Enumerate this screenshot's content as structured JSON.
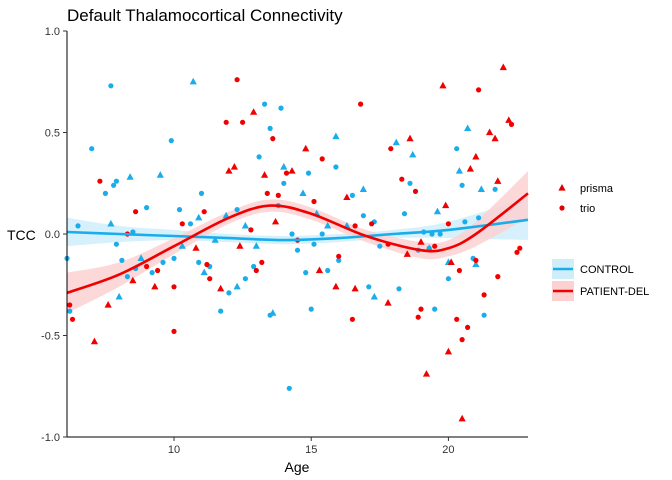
{
  "chart_data": {
    "type": "scatter",
    "title": "Default Thalamocortical Connectivity",
    "xlabel": "Age",
    "ylabel": "TCC",
    "xlim": [
      6.1,
      22.9
    ],
    "ylim": [
      -1.0,
      1.0
    ],
    "x_ticks": [
      10,
      15,
      20
    ],
    "y_ticks": [
      -1.0,
      -0.5,
      0.0,
      0.5,
      1.0
    ],
    "y_tick_labels": [
      "-1.0",
      "-0.5",
      "0.0",
      "0.5",
      "1.0"
    ],
    "grid": false,
    "colors": {
      "CONTROL": "#1aadeb",
      "PATIENT-DEL": "#f00000",
      "ribbon_control": "#cfeefa",
      "ribbon_patient": "#fcd1d1"
    },
    "shape_legend": {
      "prisma": "prisma",
      "trio": "trio"
    },
    "color_legend": {
      "CONTROL": "CONTROL",
      "PATIENT-DEL": "PATIENT-DEL"
    },
    "smooth": {
      "CONTROL": {
        "x": [
          6.1,
          8,
          10,
          12,
          14,
          16,
          18,
          20,
          22.9
        ],
        "y": [
          0.01,
          0.0,
          -0.01,
          -0.02,
          -0.03,
          -0.02,
          0.0,
          0.02,
          0.07
        ],
        "lower": [
          -0.06,
          -0.04,
          -0.03,
          -0.04,
          -0.05,
          -0.04,
          -0.02,
          -0.02,
          -0.03
        ],
        "upper": [
          0.08,
          0.04,
          0.02,
          0.0,
          -0.01,
          0.0,
          0.02,
          0.06,
          0.18
        ]
      },
      "PATIENT-DEL": {
        "x": [
          6.1,
          8,
          10,
          12,
          13.5,
          15,
          17,
          19,
          20,
          21,
          22.9
        ],
        "y": [
          -0.29,
          -0.2,
          -0.06,
          0.08,
          0.14,
          0.1,
          -0.01,
          -0.08,
          -0.07,
          0.0,
          0.2
        ],
        "lower": [
          -0.39,
          -0.26,
          -0.1,
          0.05,
          0.11,
          0.07,
          -0.04,
          -0.12,
          -0.11,
          -0.06,
          0.08
        ],
        "upper": [
          -0.19,
          -0.14,
          -0.02,
          0.11,
          0.17,
          0.13,
          0.02,
          -0.04,
          -0.03,
          0.06,
          0.31
        ]
      }
    },
    "series": [
      {
        "group": "CONTROL",
        "scanner": "trio",
        "points": [
          [
            6.1,
            -0.12
          ],
          [
            6.2,
            -0.38
          ],
          [
            6.5,
            0.04
          ],
          [
            7.0,
            0.42
          ],
          [
            7.5,
            0.2
          ],
          [
            7.7,
            0.73
          ],
          [
            7.8,
            0.24
          ],
          [
            7.9,
            0.26
          ],
          [
            7.9,
            -0.05
          ],
          [
            8.1,
            -0.13
          ],
          [
            8.3,
            -0.21
          ],
          [
            8.5,
            0.01
          ],
          [
            8.6,
            -0.17
          ],
          [
            9.0,
            0.13
          ],
          [
            9.2,
            -0.19
          ],
          [
            9.6,
            -0.14
          ],
          [
            9.9,
            0.46
          ],
          [
            10.0,
            -0.12
          ],
          [
            10.2,
            0.12
          ],
          [
            10.6,
            0.05
          ],
          [
            10.9,
            -0.14
          ],
          [
            11.0,
            0.2
          ],
          [
            11.3,
            -0.16
          ],
          [
            11.7,
            -0.38
          ],
          [
            12.0,
            -0.29
          ],
          [
            12.3,
            0.12
          ],
          [
            12.6,
            -0.22
          ],
          [
            12.9,
            -0.16
          ],
          [
            13.1,
            0.38
          ],
          [
            13.3,
            0.64
          ],
          [
            13.5,
            0.52
          ],
          [
            13.5,
            -0.4
          ],
          [
            13.8,
            0.14
          ],
          [
            13.9,
            0.62
          ],
          [
            14.0,
            0.25
          ],
          [
            14.2,
            -0.76
          ],
          [
            14.3,
            0.0
          ],
          [
            14.5,
            -0.08
          ],
          [
            14.8,
            -0.19
          ],
          [
            14.9,
            0.3
          ],
          [
            15.0,
            -0.37
          ],
          [
            15.1,
            -0.05
          ],
          [
            15.4,
            0.0
          ],
          [
            15.6,
            -0.18
          ],
          [
            15.9,
            0.33
          ],
          [
            16.0,
            -0.13
          ],
          [
            16.5,
            0.19
          ],
          [
            16.9,
            0.09
          ],
          [
            17.1,
            -0.26
          ],
          [
            17.3,
            0.06
          ],
          [
            17.5,
            -0.06
          ],
          [
            18.2,
            -0.27
          ],
          [
            18.4,
            0.1
          ],
          [
            18.6,
            0.25
          ],
          [
            18.9,
            -0.08
          ],
          [
            19.1,
            0.01
          ],
          [
            19.3,
            -0.07
          ],
          [
            19.4,
            0.0
          ],
          [
            19.5,
            -0.37
          ],
          [
            19.7,
            0.0
          ],
          [
            20.0,
            -0.22
          ],
          [
            20.3,
            0.42
          ],
          [
            20.5,
            0.24
          ],
          [
            20.6,
            0.06
          ],
          [
            20.9,
            -0.12
          ],
          [
            21.1,
            0.08
          ],
          [
            21.3,
            -0.4
          ],
          [
            21.7,
            0.22
          ]
        ]
      },
      {
        "group": "CONTROL",
        "scanner": "prisma",
        "points": [
          [
            7.7,
            0.05
          ],
          [
            8.0,
            -0.31
          ],
          [
            8.4,
            0.28
          ],
          [
            8.8,
            -0.12
          ],
          [
            9.5,
            0.29
          ],
          [
            10.3,
            -0.06
          ],
          [
            10.7,
            0.75
          ],
          [
            10.9,
            0.08
          ],
          [
            11.1,
            -0.19
          ],
          [
            11.5,
            -0.03
          ],
          [
            11.9,
            0.09
          ],
          [
            12.3,
            -0.26
          ],
          [
            12.6,
            0.04
          ],
          [
            13.0,
            -0.06
          ],
          [
            13.6,
            -0.39
          ],
          [
            14.0,
            0.33
          ],
          [
            14.7,
            0.2
          ],
          [
            15.2,
            0.1
          ],
          [
            15.6,
            0.04
          ],
          [
            15.9,
            0.48
          ],
          [
            16.3,
            0.04
          ],
          [
            16.9,
            0.22
          ],
          [
            17.3,
            -0.31
          ],
          [
            18.1,
            0.45
          ],
          [
            18.7,
            0.39
          ],
          [
            19.3,
            -0.07
          ],
          [
            19.6,
            0.11
          ],
          [
            20.0,
            -0.14
          ],
          [
            20.4,
            0.31
          ],
          [
            20.7,
            0.52
          ],
          [
            21.0,
            -0.15
          ],
          [
            21.2,
            0.22
          ]
        ]
      },
      {
        "group": "PATIENT-DEL",
        "scanner": "trio",
        "points": [
          [
            6.2,
            -0.35
          ],
          [
            6.3,
            -0.42
          ],
          [
            7.3,
            0.26
          ],
          [
            8.3,
            0.0
          ],
          [
            8.6,
            0.11
          ],
          [
            9.0,
            -0.16
          ],
          [
            9.4,
            -0.18
          ],
          [
            10.0,
            -0.48
          ],
          [
            10.0,
            -0.26
          ],
          [
            10.3,
            0.05
          ],
          [
            11.1,
            0.11
          ],
          [
            11.2,
            -0.15
          ],
          [
            11.3,
            -0.22
          ],
          [
            11.9,
            0.55
          ],
          [
            12.3,
            0.76
          ],
          [
            12.5,
            0.55
          ],
          [
            12.8,
            0.02
          ],
          [
            13.0,
            -0.18
          ],
          [
            13.2,
            -0.14
          ],
          [
            13.4,
            0.2
          ],
          [
            13.6,
            0.47
          ],
          [
            13.8,
            0.19
          ],
          [
            14.1,
            0.3
          ],
          [
            14.5,
            -0.03
          ],
          [
            15.1,
            0.16
          ],
          [
            15.4,
            0.37
          ],
          [
            16.0,
            -0.11
          ],
          [
            16.5,
            -0.42
          ],
          [
            16.6,
            0.04
          ],
          [
            16.8,
            0.64
          ],
          [
            17.2,
            0.05
          ],
          [
            17.8,
            -0.05
          ],
          [
            17.9,
            0.42
          ],
          [
            18.3,
            0.27
          ],
          [
            18.8,
            0.21
          ],
          [
            18.9,
            -0.41
          ],
          [
            19.0,
            -0.37
          ],
          [
            19.5,
            -0.06
          ],
          [
            20.0,
            0.05
          ],
          [
            20.3,
            -0.42
          ],
          [
            20.4,
            -0.18
          ],
          [
            20.5,
            -0.52
          ],
          [
            20.7,
            -0.46
          ],
          [
            21.0,
            -0.13
          ],
          [
            21.1,
            0.71
          ],
          [
            21.3,
            -0.3
          ],
          [
            21.8,
            -0.21
          ],
          [
            22.3,
            0.54
          ],
          [
            22.5,
            -0.09
          ],
          [
            22.6,
            -0.07
          ]
        ]
      },
      {
        "group": "PATIENT-DEL",
        "scanner": "prisma",
        "points": [
          [
            7.6,
            -0.35
          ],
          [
            7.1,
            -0.53
          ],
          [
            8.5,
            -0.23
          ],
          [
            9.3,
            -0.26
          ],
          [
            10.8,
            -0.07
          ],
          [
            11.7,
            -0.27
          ],
          [
            12.0,
            0.31
          ],
          [
            12.2,
            0.33
          ],
          [
            12.4,
            -0.06
          ],
          [
            12.9,
            0.6
          ],
          [
            13.3,
            0.29
          ],
          [
            13.7,
            0.06
          ],
          [
            14.3,
            0.31
          ],
          [
            14.8,
            0.42
          ],
          [
            15.3,
            -0.18
          ],
          [
            15.9,
            -0.26
          ],
          [
            16.3,
            0.18
          ],
          [
            16.6,
            -0.27
          ],
          [
            17.8,
            -0.34
          ],
          [
            18.5,
            -0.1
          ],
          [
            18.6,
            0.47
          ],
          [
            19.0,
            -0.04
          ],
          [
            19.2,
            -0.69
          ],
          [
            19.8,
            0.73
          ],
          [
            19.9,
            0.14
          ],
          [
            20.0,
            -0.58
          ],
          [
            20.1,
            -0.14
          ],
          [
            20.5,
            -0.91
          ],
          [
            20.8,
            0.32
          ],
          [
            21.0,
            0.38
          ],
          [
            21.5,
            0.5
          ],
          [
            21.7,
            0.47
          ],
          [
            21.8,
            0.26
          ],
          [
            22.0,
            0.82
          ],
          [
            22.2,
            0.56
          ]
        ]
      }
    ]
  }
}
